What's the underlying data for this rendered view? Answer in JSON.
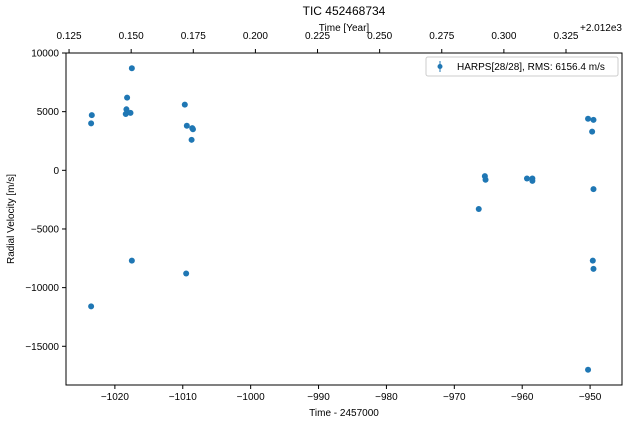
{
  "chart_data": {
    "type": "scatter",
    "title": "TIC 452468734",
    "xlabel": "Time - 2457000",
    "ylabel": "Radial Velocity [m/s]",
    "top_xlabel": "Time [Year]",
    "top_offset_text": "+2.012e3",
    "xlim": [
      -1027.2,
      -945.3
    ],
    "ylim": [
      -18300,
      10000
    ],
    "x_ticks": [
      -1020,
      -1010,
      -1000,
      -990,
      -980,
      -970,
      -960,
      -950
    ],
    "x_tick_labels": [
      "−1020",
      "−1010",
      "−1000",
      "−990",
      "−980",
      "−970",
      "−960",
      "−950"
    ],
    "y_ticks": [
      10000,
      5000,
      0,
      -5000,
      -10000,
      -15000
    ],
    "y_tick_labels": [
      "10000",
      "5000",
      "0",
      "−5000",
      "−10000",
      "−15000"
    ],
    "top_ticks": [
      0.125,
      0.15,
      0.175,
      0.2,
      0.225,
      0.25,
      0.275,
      0.3,
      0.325
    ],
    "top_tick_labels": [
      "0.125",
      "0.150",
      "0.175",
      "0.200",
      "0.225",
      "0.250",
      "0.275",
      "0.300",
      "0.325"
    ],
    "top_year_start": 2012,
    "legend": {
      "label": "HARPS[28/28], RMS:    6156.4 m/s",
      "position": "top-right"
    },
    "grid": false,
    "color": "#1f77b4",
    "series": [
      {
        "name": "HARPS[28/28]",
        "points": [
          {
            "x": -1023.4,
            "y": 4700
          },
          {
            "x": -1023.5,
            "y": 4000
          },
          {
            "x": -1023.5,
            "y": -11600
          },
          {
            "x": -1018.2,
            "y": 6200
          },
          {
            "x": -1018.3,
            "y": 5200
          },
          {
            "x": -1018.4,
            "y": 4800
          },
          {
            "x": -1017.7,
            "y": 4900
          },
          {
            "x": -1017.5,
            "y": 8700
          },
          {
            "x": -1017.5,
            "y": -7700
          },
          {
            "x": -1009.7,
            "y": 5600
          },
          {
            "x": -1009.4,
            "y": 3800
          },
          {
            "x": -1008.6,
            "y": 3600
          },
          {
            "x": -1008.5,
            "y": 3500
          },
          {
            "x": -1008.7,
            "y": 2600
          },
          {
            "x": -1009.5,
            "y": -8800
          },
          {
            "x": -966.4,
            "y": -3300
          },
          {
            "x": -965.5,
            "y": -500
          },
          {
            "x": -965.4,
            "y": -800
          },
          {
            "x": -959.3,
            "y": -700
          },
          {
            "x": -958.5,
            "y": -700
          },
          {
            "x": -958.5,
            "y": -900
          },
          {
            "x": -950.3,
            "y": 4400
          },
          {
            "x": -949.5,
            "y": 4300
          },
          {
            "x": -949.7,
            "y": 3300
          },
          {
            "x": -949.5,
            "y": -1600
          },
          {
            "x": -949.6,
            "y": -7700
          },
          {
            "x": -949.5,
            "y": -8400
          },
          {
            "x": -950.3,
            "y": -17000
          }
        ]
      }
    ]
  }
}
